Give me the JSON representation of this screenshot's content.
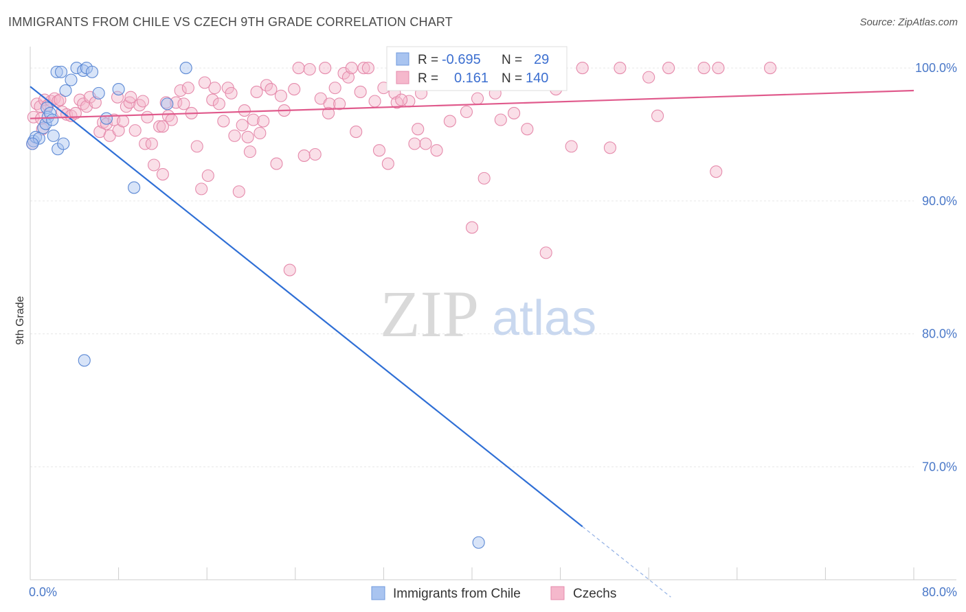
{
  "title": "IMMIGRANTS FROM CHILE VS CZECH 9TH GRADE CORRELATION CHART",
  "source": "Source: ZipAtlas.com",
  "watermark": {
    "zip": "ZIP",
    "atlas": "atlas"
  },
  "chart_data": {
    "type": "scatter",
    "title": "IMMIGRANTS FROM CHILE VS CZECH 9TH GRADE CORRELATION CHART",
    "xlabel": "",
    "ylabel": "9th Grade",
    "xlim": [
      0,
      80
    ],
    "ylim": [
      61.5,
      101.5
    ],
    "x_tick_labels": [
      {
        "value": 0,
        "label": "0.0%"
      },
      {
        "value": 80,
        "label": "80.0%"
      }
    ],
    "y_tick_labels": [
      {
        "value": 100,
        "label": "100.0%"
      },
      {
        "value": 90,
        "label": "90.0%"
      },
      {
        "value": 80,
        "label": "80.0%"
      },
      {
        "value": 70,
        "label": "70.0%"
      }
    ],
    "grid": true,
    "legend_position": "top-center",
    "colors": {
      "blue": "#2f6fd6",
      "blue_fill": "#a9c4f0",
      "pink": "#e05a8c",
      "pink_fill": "#f5b8cc"
    },
    "stats": [
      {
        "series": "Immigrants from Chile",
        "r_label": "R =",
        "r": "-0.695",
        "n_label": "N =",
        "n": "29"
      },
      {
        "series": "Czechs",
        "r_label": "R =",
        "r": "0.161",
        "n_label": "N =",
        "n": "140"
      }
    ],
    "series": [
      {
        "name": "Immigrants from Chile",
        "color": "#2f6fd6",
        "points": [
          [
            0.3,
            94.5
          ],
          [
            0.5,
            94.8
          ],
          [
            0.8,
            94.7
          ],
          [
            1.2,
            95.5
          ],
          [
            1.4,
            95.8
          ],
          [
            1.5,
            97.0
          ],
          [
            1.6,
            96.3
          ],
          [
            1.8,
            96.6
          ],
          [
            2.0,
            96.1
          ],
          [
            2.1,
            94.9
          ],
          [
            2.4,
            99.7
          ],
          [
            2.5,
            93.9
          ],
          [
            2.8,
            99.7
          ],
          [
            3.0,
            94.3
          ],
          [
            3.2,
            98.3
          ],
          [
            3.7,
            99.1
          ],
          [
            4.2,
            100.0
          ],
          [
            4.8,
            99.8
          ],
          [
            5.1,
            100.0
          ],
          [
            5.6,
            99.7
          ],
          [
            6.2,
            98.1
          ],
          [
            6.9,
            96.2
          ],
          [
            8.0,
            98.4
          ],
          [
            9.4,
            91.0
          ],
          [
            12.4,
            97.3
          ],
          [
            14.1,
            100.0
          ],
          [
            4.9,
            78.0
          ],
          [
            40.6,
            64.3
          ],
          [
            0.2,
            94.3
          ]
        ],
        "trend": {
          "x0": 0.0,
          "y0": 98.6,
          "x1": 50.0,
          "y1": 65.5,
          "dashed_to_x": 58.0,
          "dashed_to_y": 60.2
        }
      },
      {
        "name": "Czechs",
        "color": "#e05a8c",
        "points": [
          [
            0.3,
            96.3
          ],
          [
            0.6,
            97.3
          ],
          [
            0.9,
            97.1
          ],
          [
            1.1,
            95.4
          ],
          [
            1.3,
            97.6
          ],
          [
            1.6,
            97.2
          ],
          [
            1.9,
            97.5
          ],
          [
            2.2,
            97.7
          ],
          [
            2.5,
            97.5
          ],
          [
            2.9,
            96.7
          ],
          [
            3.3,
            96.5
          ],
          [
            3.7,
            96.4
          ],
          [
            4.1,
            96.6
          ],
          [
            4.5,
            97.6
          ],
          [
            4.8,
            97.3
          ],
          [
            5.1,
            97.1
          ],
          [
            5.4,
            97.8
          ],
          [
            5.9,
            97.4
          ],
          [
            6.3,
            95.2
          ],
          [
            6.6,
            95.9
          ],
          [
            6.9,
            95.8
          ],
          [
            7.2,
            94.9
          ],
          [
            7.6,
            96.1
          ],
          [
            8.0,
            95.3
          ],
          [
            8.4,
            96.0
          ],
          [
            8.7,
            97.1
          ],
          [
            9.0,
            97.4
          ],
          [
            9.1,
            97.8
          ],
          [
            9.5,
            95.3
          ],
          [
            9.9,
            97.2
          ],
          [
            10.2,
            97.5
          ],
          [
            10.4,
            94.3
          ],
          [
            10.6,
            96.3
          ],
          [
            11.0,
            94.3
          ],
          [
            11.2,
            92.7
          ],
          [
            11.7,
            95.6
          ],
          [
            12.0,
            92.0
          ],
          [
            12.3,
            97.4
          ],
          [
            12.5,
            96.4
          ],
          [
            12.8,
            96.1
          ],
          [
            13.2,
            97.4
          ],
          [
            13.6,
            98.3
          ],
          [
            13.9,
            97.3
          ],
          [
            14.3,
            98.5
          ],
          [
            14.6,
            96.6
          ],
          [
            15.1,
            94.1
          ],
          [
            15.5,
            90.9
          ],
          [
            15.8,
            98.9
          ],
          [
            16.1,
            91.9
          ],
          [
            16.5,
            97.6
          ],
          [
            16.7,
            98.5
          ],
          [
            17.1,
            97.3
          ],
          [
            17.5,
            96.0
          ],
          [
            17.9,
            98.5
          ],
          [
            18.2,
            98.1
          ],
          [
            18.5,
            94.9
          ],
          [
            18.9,
            90.7
          ],
          [
            19.2,
            95.7
          ],
          [
            19.4,
            96.8
          ],
          [
            19.7,
            94.8
          ],
          [
            19.9,
            93.7
          ],
          [
            20.2,
            96.1
          ],
          [
            20.5,
            98.2
          ],
          [
            20.8,
            95.1
          ],
          [
            21.1,
            96.0
          ],
          [
            21.4,
            98.7
          ],
          [
            21.8,
            98.4
          ],
          [
            22.3,
            92.8
          ],
          [
            22.7,
            97.9
          ],
          [
            23.0,
            96.8
          ],
          [
            23.5,
            84.8
          ],
          [
            23.9,
            98.4
          ],
          [
            24.3,
            100.0
          ],
          [
            24.8,
            93.4
          ],
          [
            25.3,
            99.9
          ],
          [
            25.8,
            93.5
          ],
          [
            26.3,
            97.7
          ],
          [
            26.7,
            100.0
          ],
          [
            27.1,
            97.3
          ],
          [
            27.6,
            98.5
          ],
          [
            28.0,
            97.3
          ],
          [
            28.4,
            99.6
          ],
          [
            28.8,
            99.3
          ],
          [
            29.1,
            100.0
          ],
          [
            29.5,
            95.2
          ],
          [
            29.9,
            98.2
          ],
          [
            30.2,
            100.0
          ],
          [
            30.6,
            100.0
          ],
          [
            31.2,
            97.5
          ],
          [
            31.6,
            93.8
          ],
          [
            32.0,
            98.5
          ],
          [
            32.4,
            92.8
          ],
          [
            33.0,
            98.1
          ],
          [
            33.2,
            97.4
          ],
          [
            33.8,
            100.0
          ],
          [
            34.3,
            97.5
          ],
          [
            34.8,
            94.3
          ],
          [
            35.1,
            95.4
          ],
          [
            35.4,
            98.1
          ],
          [
            35.8,
            94.3
          ],
          [
            36.3,
            100.0
          ],
          [
            36.8,
            93.8
          ],
          [
            37.1,
            99.2
          ],
          [
            37.5,
            99.9
          ],
          [
            38.0,
            96.0
          ],
          [
            38.6,
            100.0
          ],
          [
            39.0,
            99.1
          ],
          [
            39.5,
            96.7
          ],
          [
            40.0,
            88.0
          ],
          [
            40.5,
            97.7
          ],
          [
            41.1,
            91.7
          ],
          [
            41.6,
            100.0
          ],
          [
            42.1,
            98.1
          ],
          [
            42.6,
            96.1
          ],
          [
            43.2,
            100.0
          ],
          [
            43.8,
            96.6
          ],
          [
            44.3,
            100.0
          ],
          [
            45.0,
            95.4
          ],
          [
            45.7,
            100.0
          ],
          [
            46.7,
            86.1
          ],
          [
            47.6,
            98.4
          ],
          [
            48.0,
            99.4
          ],
          [
            49.0,
            94.1
          ],
          [
            50.0,
            100.0
          ],
          [
            52.5,
            94.0
          ],
          [
            53.4,
            100.0
          ],
          [
            56.0,
            99.3
          ],
          [
            56.8,
            96.4
          ],
          [
            57.8,
            100.0
          ],
          [
            61.0,
            100.0
          ],
          [
            62.1,
            92.2
          ],
          [
            62.3,
            100.0
          ],
          [
            67.0,
            100.0
          ],
          [
            0.2,
            94.3
          ],
          [
            1.0,
            96.2
          ],
          [
            2.7,
            97.6
          ],
          [
            7.9,
            97.8
          ],
          [
            12.0,
            95.6
          ],
          [
            27.0,
            96.6
          ],
          [
            33.6,
            97.6
          ]
        ],
        "trend": {
          "x0": 0.0,
          "y0": 96.2,
          "x1": 80.0,
          "y1": 98.3
        }
      }
    ]
  }
}
